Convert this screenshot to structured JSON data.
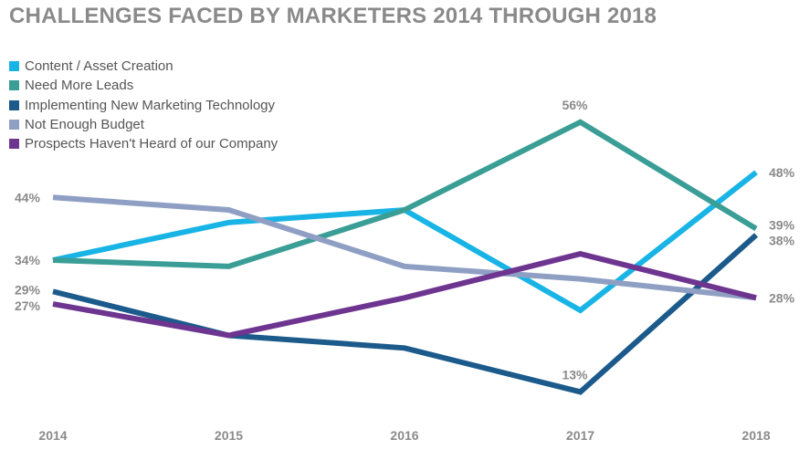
{
  "chart_data": {
    "type": "line",
    "title": "CHALLENGES FACED BY MARKETERS 2014 THROUGH 2018",
    "categories": [
      "2014",
      "2015",
      "2016",
      "2017",
      "2018"
    ],
    "series": [
      {
        "name": "Content / Asset Creation",
        "color": "#19b4e6",
        "values": [
          34,
          40,
          42,
          26,
          48
        ]
      },
      {
        "name": "Need More Leads",
        "color": "#3a9e96",
        "values": [
          34,
          33,
          42,
          56,
          39
        ]
      },
      {
        "name": "Implementing New Marketing Technology",
        "color": "#1b5a8a",
        "values": [
          29,
          22,
          20,
          13,
          38
        ]
      },
      {
        "name": "Not Enough Budget",
        "color": "#8f9fc4",
        "values": [
          44,
          42,
          33,
          31,
          28
        ]
      },
      {
        "name": "Prospects Haven't Heard of our Company",
        "color": "#6e3590",
        "values": [
          27,
          22,
          28,
          35,
          28
        ]
      }
    ],
    "data_labels": [
      {
        "text": "44%",
        "category": "2014",
        "value": 44,
        "side": "left"
      },
      {
        "text": "34%",
        "category": "2014",
        "value": 34,
        "side": "left"
      },
      {
        "text": "29%",
        "category": "2014",
        "value": 29,
        "side": "left"
      },
      {
        "text": "27%",
        "category": "2014",
        "value": 27,
        "side": "left"
      },
      {
        "text": "56%",
        "category": "2017",
        "value": 56,
        "side": "above"
      },
      {
        "text": "13%",
        "category": "2017",
        "value": 13,
        "side": "above"
      },
      {
        "text": "48%",
        "category": "2018",
        "value": 48,
        "side": "right"
      },
      {
        "text": "39%",
        "category": "2018",
        "value": 39,
        "side": "right"
      },
      {
        "text": "38%",
        "category": "2018",
        "value": 38,
        "side": "right"
      },
      {
        "text": "28%",
        "category": "2018",
        "value": 28,
        "side": "right"
      }
    ],
    "ylim": [
      10,
      58
    ],
    "grid": false,
    "legend_position": "top-left",
    "xlabel": "",
    "ylabel": ""
  }
}
